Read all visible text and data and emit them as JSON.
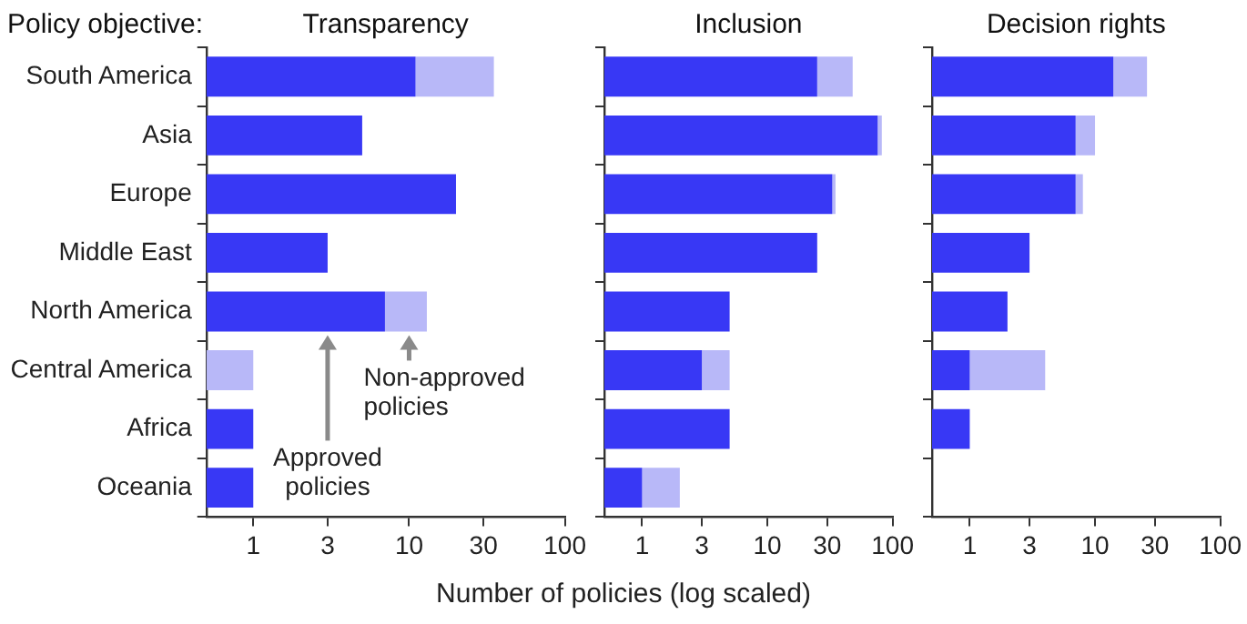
{
  "chart_data": [
    {
      "type": "bar",
      "orientation": "horizontal",
      "stacked": true,
      "log": "x",
      "title": "Transparency",
      "ylabel": "Policy objective:",
      "categories": [
        "South America",
        "Asia",
        "Europe",
        "Middle East",
        "North America",
        "Central America",
        "Africa",
        "Oceania"
      ],
      "series": [
        {
          "color": "#3838f5",
          "values": [
            11,
            5,
            20,
            3,
            7,
            null,
            1,
            1
          ]
        },
        {
          "color": "#b8b8f8",
          "values": [
            24,
            null,
            null,
            null,
            6,
            1,
            null,
            null
          ]
        }
      ],
      "xlim": [
        0.5,
        100
      ],
      "xticks": [
        1,
        3,
        10,
        30,
        100
      ],
      "annotations": [
        {
          "text": "Approved policies",
          "x": 3,
          "y": "North America"
        },
        {
          "text": "Non-approved policies",
          "x": 10,
          "y": "North America"
        }
      ]
    },
    {
      "type": "bar",
      "orientation": "horizontal",
      "stacked": true,
      "log": "x",
      "title": "Inclusion",
      "xlabel": "Number of policies (log scaled)",
      "tick_labels": "x",
      "categories": [
        null,
        null,
        null,
        null,
        null,
        null,
        null,
        null
      ],
      "series": [
        {
          "color": "#3838f5",
          "values": [
            25,
            76,
            33,
            25,
            5,
            3,
            5,
            1
          ]
        },
        {
          "color": "#b8b8f8",
          "values": [
            23,
            6,
            2,
            null,
            null,
            2,
            null,
            1
          ]
        }
      ],
      "xlim": [
        0.5,
        100
      ],
      "xticks": [
        1,
        3,
        10,
        30,
        100
      ]
    },
    {
      "type": "bar",
      "orientation": "horizontal",
      "stacked": true,
      "log": "x",
      "title": "Decision rights",
      "tick_labels": "x",
      "categories": [
        null,
        null,
        null,
        null,
        null,
        null,
        null,
        null
      ],
      "series": [
        {
          "color": "#3838f5",
          "values": [
            14,
            7,
            7,
            3,
            2,
            1,
            1,
            null
          ]
        },
        {
          "color": "#b8b8f8",
          "values": [
            12,
            3,
            1,
            null,
            null,
            3,
            null,
            null
          ]
        }
      ],
      "xlim": [
        0.5,
        100
      ],
      "xticks": [
        1,
        3,
        10,
        30,
        100
      ]
    }
  ]
}
